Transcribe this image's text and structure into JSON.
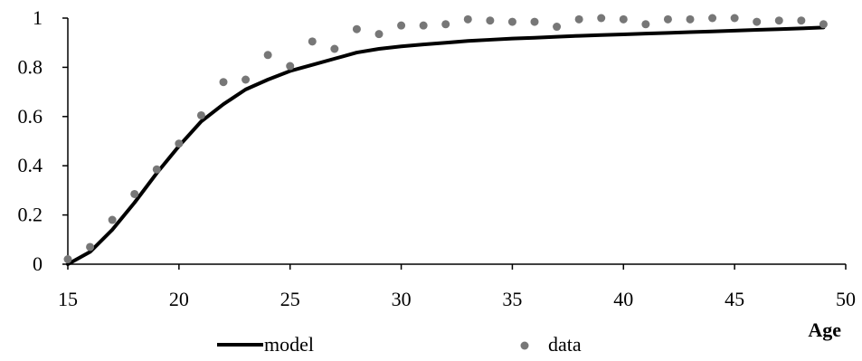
{
  "chart_data": {
    "type": "line",
    "title": "",
    "xlabel": "Age",
    "ylabel": "",
    "xlim": [
      15,
      50
    ],
    "ylim": [
      0,
      1
    ],
    "x_ticks": [
      15,
      20,
      25,
      30,
      35,
      40,
      45,
      50
    ],
    "y_ticks": [
      0,
      0.2,
      0.4,
      0.6,
      0.8,
      1
    ],
    "x_tick_labels": [
      "15",
      "20",
      "25",
      "30",
      "35",
      "40",
      "45",
      "50"
    ],
    "y_tick_labels": [
      "0",
      "0.2",
      "0.4",
      "0.6",
      "0.8",
      "1"
    ],
    "grid": false,
    "legend_position": "bottom",
    "series": [
      {
        "name": "model",
        "style": "line",
        "color": "#000000",
        "x": [
          15,
          16,
          17,
          18,
          19,
          20,
          21,
          22,
          23,
          24,
          25,
          26,
          27,
          28,
          29,
          30,
          31,
          32,
          33,
          34,
          35,
          36,
          37,
          38,
          39,
          40,
          41,
          42,
          43,
          44,
          45,
          46,
          47,
          48,
          49
        ],
        "y": [
          0.0,
          0.05,
          0.14,
          0.25,
          0.37,
          0.48,
          0.58,
          0.65,
          0.71,
          0.75,
          0.785,
          0.81,
          0.835,
          0.86,
          0.875,
          0.885,
          0.893,
          0.9,
          0.907,
          0.912,
          0.917,
          0.92,
          0.924,
          0.928,
          0.931,
          0.934,
          0.937,
          0.94,
          0.943,
          0.946,
          0.949,
          0.952,
          0.955,
          0.958,
          0.962
        ]
      },
      {
        "name": "data",
        "style": "markers",
        "color": "#777777",
        "x": [
          15,
          16,
          17,
          18,
          19,
          20,
          21,
          22,
          23,
          24,
          25,
          26,
          27,
          28,
          29,
          30,
          31,
          32,
          33,
          34,
          35,
          36,
          37,
          38,
          39,
          40,
          41,
          42,
          43,
          44,
          45,
          46,
          47,
          48,
          49
        ],
        "y": [
          0.02,
          0.07,
          0.18,
          0.285,
          0.385,
          0.49,
          0.605,
          0.74,
          0.75,
          0.85,
          0.805,
          0.905,
          0.875,
          0.955,
          0.935,
          0.97,
          0.97,
          0.975,
          0.995,
          0.99,
          0.985,
          0.985,
          0.965,
          0.995,
          1.0,
          0.995,
          0.975,
          0.995,
          0.995,
          1.0,
          1.0,
          0.985,
          0.99,
          0.99,
          0.975
        ]
      }
    ]
  }
}
